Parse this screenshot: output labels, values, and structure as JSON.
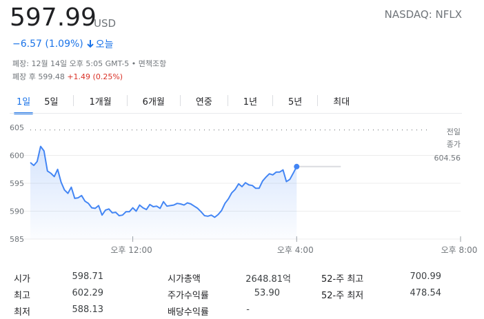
{
  "quote": {
    "price": "597.99",
    "currency": "USD",
    "exchange_ticker": "NASDAQ: NFLX",
    "change": "−6.57 (1.09%)",
    "change_period": "오늘",
    "change_color": "#1a73e8",
    "change_direction_icon": "arrow-down-icon",
    "close_info_prefix": "폐장: 12월 14일 오후 5:05 GMT-5 •",
    "disclaimer_link": "면책조항",
    "after_hours_prefix": "폐장 후 599.48",
    "after_hours_change": "+1.49 (0.25%)",
    "after_hours_change_color": "#d93025"
  },
  "tabs": [
    {
      "label": "1일",
      "active": true
    },
    {
      "label": "5일",
      "active": false
    },
    {
      "label": "1개월",
      "active": false
    },
    {
      "label": "6개월",
      "active": false
    },
    {
      "label": "연중",
      "active": false
    },
    {
      "label": "1년",
      "active": false
    },
    {
      "label": "5년",
      "active": false
    },
    {
      "label": "최대",
      "active": false
    }
  ],
  "chart_data": {
    "type": "area",
    "ylim": [
      585,
      605
    ],
    "y_ticks": [
      605,
      600,
      595,
      590,
      585
    ],
    "x_range": [
      "09:30",
      "20:00"
    ],
    "x_ticks": [
      {
        "label": "오후 12:00",
        "x": "12:00"
      },
      {
        "label": "오후 4:00",
        "x": "16:00"
      },
      {
        "label": "오후 8:00",
        "x": "20:00"
      }
    ],
    "grid": "horizontal",
    "line_color": "#4285f4",
    "previous_close": {
      "label_line1": "전일",
      "label_line2": "종가",
      "value": "604.56",
      "y": 604.56
    },
    "last_point_reference": 598.0,
    "series": [
      {
        "x": [
          "09:30",
          "09:35",
          "09:40",
          "09:45",
          "09:50",
          "09:55",
          "10:00",
          "10:05",
          "10:10",
          "10:15",
          "10:20",
          "10:25",
          "10:30",
          "10:35",
          "10:40",
          "10:45",
          "10:50",
          "10:55",
          "11:00",
          "11:05",
          "11:10",
          "11:15",
          "11:20",
          "11:25",
          "11:30",
          "11:35",
          "11:40",
          "11:45",
          "11:50",
          "11:55",
          "12:00",
          "12:05",
          "12:10",
          "12:15",
          "12:20",
          "12:25",
          "12:30",
          "12:35",
          "12:40",
          "12:45",
          "12:50",
          "12:55",
          "13:00",
          "13:05",
          "13:10",
          "13:15",
          "13:20",
          "13:25",
          "13:30",
          "13:35",
          "13:40",
          "13:45",
          "13:50",
          "13:55",
          "14:00",
          "14:05",
          "14:10",
          "14:15",
          "14:20",
          "14:25",
          "14:30",
          "14:35",
          "14:40",
          "14:45",
          "14:50",
          "14:55",
          "15:00",
          "15:05",
          "15:10",
          "15:15",
          "15:20",
          "15:25",
          "15:30",
          "15:35",
          "15:40",
          "15:45",
          "15:50",
          "15:55",
          "16:00"
        ],
        "values": [
          598.71,
          598.2,
          598.9,
          601.6,
          600.8,
          597.2,
          596.8,
          596.2,
          597.5,
          595.2,
          593.8,
          593.2,
          594.3,
          592.3,
          592.4,
          592.8,
          591.8,
          591.4,
          590.6,
          590.5,
          591.0,
          589.3,
          590.2,
          590.4,
          589.7,
          589.8,
          589.2,
          589.3,
          589.9,
          589.9,
          590.6,
          590.0,
          591.1,
          590.6,
          590.3,
          591.2,
          590.8,
          590.9,
          590.5,
          591.7,
          590.9,
          591.0,
          591.1,
          591.4,
          591.3,
          591.1,
          591.5,
          591.3,
          590.9,
          590.5,
          589.9,
          589.2,
          589.1,
          589.3,
          588.9,
          589.4,
          590.1,
          591.4,
          592.2,
          593.3,
          593.9,
          594.9,
          594.4,
          595.1,
          594.7,
          594.6,
          594.1,
          594.1,
          595.4,
          596.1,
          596.7,
          596.5,
          597.0,
          597.0,
          597.4,
          595.3,
          595.7,
          596.8,
          597.99
        ]
      }
    ]
  },
  "stats": {
    "open_label": "시가",
    "open_value": "598.71",
    "high_label": "최고",
    "high_value": "602.29",
    "low_label": "최저",
    "low_value": "588.13",
    "mktcap_label": "시가총액",
    "mktcap_value": "2648.81억",
    "pe_label": "주가수익률",
    "pe_value": "53.90",
    "div_label": "배당수익률",
    "div_value": "-",
    "high52_label": "52-주 최고",
    "high52_value": "700.99",
    "low52_label": "52-주 최저",
    "low52_value": "478.54"
  }
}
